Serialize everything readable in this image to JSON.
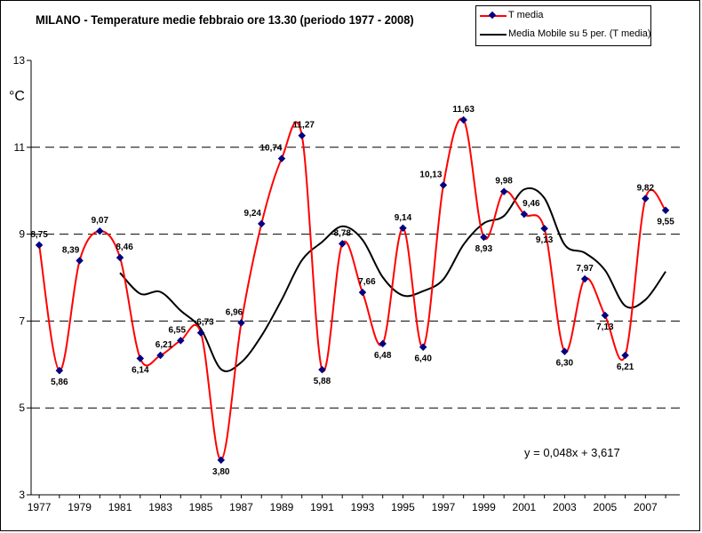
{
  "chart_data": {
    "type": "line",
    "title": "MILANO  - Temperature medie febbraio ore 13.30 (periodo 1977 - 2008)",
    "ylabel": "°C",
    "xlabel": "",
    "ylim": [
      3,
      13
    ],
    "yticks": [
      3,
      5,
      7,
      9,
      11,
      13
    ],
    "xlim": [
      1977,
      2008
    ],
    "xticks": [
      1977,
      1979,
      1981,
      1983,
      1985,
      1987,
      1989,
      1991,
      1993,
      1995,
      1997,
      1999,
      2001,
      2003,
      2005,
      2007
    ],
    "grid": "horizontal dashed at 5, 7, 9, 11",
    "legend_placement": "top-right",
    "x": [
      1977,
      1978,
      1979,
      1980,
      1981,
      1982,
      1983,
      1984,
      1985,
      1986,
      1987,
      1988,
      1989,
      1990,
      1991,
      1992,
      1993,
      1994,
      1995,
      1996,
      1997,
      1998,
      1999,
      2000,
      2001,
      2002,
      2003,
      2004,
      2005,
      2006,
      2007,
      2008
    ],
    "series": [
      {
        "name": "T media",
        "color": "#ff0000",
        "marker_color": "#000080",
        "values": [
          8.75,
          5.86,
          8.39,
          9.07,
          8.46,
          6.14,
          6.21,
          6.55,
          6.73,
          3.8,
          6.96,
          9.24,
          10.74,
          11.27,
          5.88,
          8.78,
          7.66,
          6.48,
          9.14,
          6.4,
          10.13,
          11.63,
          8.93,
          9.98,
          9.46,
          9.13,
          6.3,
          7.97,
          7.13,
          6.21,
          9.82,
          9.55
        ],
        "labels": [
          "8,75",
          "5,86",
          "8,39",
          "9,07",
          "8,46",
          "6,14",
          "6,21",
          "6,55",
          "6,73",
          "3,80",
          "6,96",
          "9,24",
          "10,74",
          "11,27",
          "5,88",
          "8,78",
          "7,66",
          "6,48",
          "9,14",
          "6,40",
          "10,13",
          "11,63",
          "8,93",
          "9,98",
          "9,46",
          "9,13",
          "6,30",
          "7,97",
          "7,13",
          "6,21",
          "9,82",
          "9,55"
        ]
      },
      {
        "name": "Media Mobile su 5 per. (T media)",
        "color": "#000000",
        "x": [
          1981,
          1982,
          1983,
          1984,
          1985,
          1986,
          1987,
          1988,
          1989,
          1990,
          1991,
          1992,
          1993,
          1994,
          1995,
          1996,
          1997,
          1998,
          1999,
          2000,
          2001,
          2002,
          2003,
          2004,
          2005,
          2006,
          2007,
          2008
        ],
        "values": [
          8.11,
          7.63,
          7.67,
          7.24,
          6.82,
          5.89,
          6.05,
          6.66,
          7.49,
          8.4,
          8.82,
          9.18,
          8.87,
          8.01,
          7.59,
          7.69,
          7.96,
          8.76,
          9.25,
          9.42,
          10.03,
          9.83,
          8.76,
          8.57,
          8.17,
          7.35,
          7.49,
          8.14
        ]
      }
    ],
    "annotation": "y = 0,048x + 3,617"
  }
}
